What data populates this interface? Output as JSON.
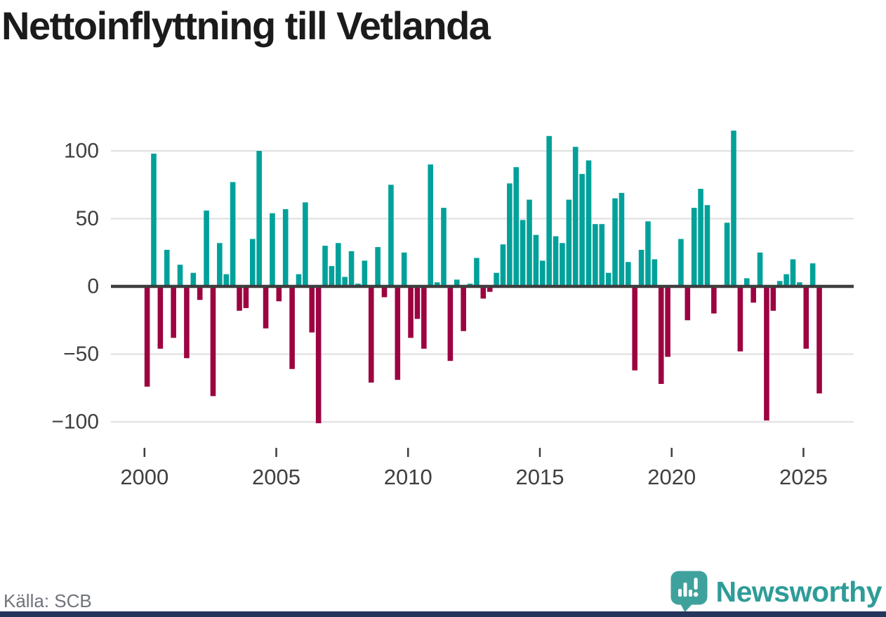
{
  "page": {
    "title": "Nettoinflyttning till Vetlanda",
    "source": "Källa: SCB",
    "brand": "Newsworthy"
  },
  "chart_data": {
    "type": "bar",
    "title": "Nettoinflyttning till Vetlanda",
    "frequency": "quarterly",
    "start_period": "2000-Q1",
    "end_period": "2025-Q3",
    "values": [
      -74,
      98,
      -46,
      27,
      -38,
      16,
      -53,
      10,
      -10,
      56,
      -81,
      32,
      9,
      77,
      -18,
      -16,
      35,
      100,
      -31,
      54,
      -11,
      57,
      -61,
      9,
      62,
      -34,
      -101,
      30,
      15,
      32,
      7,
      26,
      2,
      19,
      -71,
      29,
      -8,
      75,
      -69,
      25,
      -38,
      -24,
      -46,
      90,
      3,
      58,
      -55,
      5,
      -33,
      2,
      21,
      -9,
      -4,
      10,
      31,
      76,
      88,
      49,
      64,
      38,
      19,
      111,
      37,
      32,
      64,
      103,
      83,
      93,
      46,
      46,
      10,
      65,
      69,
      18,
      -62,
      27,
      48,
      20,
      -72,
      -52,
      0,
      35,
      -25,
      58,
      72,
      60,
      -20,
      0,
      47,
      115,
      -48,
      6,
      -12,
      25,
      -99,
      -18,
      4,
      9,
      20,
      3,
      -46,
      17,
      -79
    ],
    "x_axis": {
      "tick_years": [
        2000,
        2005,
        2010,
        2015,
        2020,
        2025
      ],
      "tick_labels": [
        "2000",
        "2005",
        "2010",
        "2015",
        "2020",
        "2025"
      ]
    },
    "y_axis": {
      "ticks": [
        {
          "value": 100,
          "label": "100"
        },
        {
          "value": 50,
          "label": "50"
        },
        {
          "value": 0,
          "label": "0"
        },
        {
          "value": -50,
          "label": "−50"
        },
        {
          "value": -100,
          "label": "−100"
        }
      ],
      "range": [
        -110,
        120
      ]
    },
    "colors": {
      "positive": "#00a19a",
      "negative": "#9d0341",
      "gridline": "#e1e1e1",
      "zero_line": "#3e3e3e",
      "axis_text": "#3f3f3f"
    },
    "grid": true,
    "legend": false,
    "source": "SCB"
  }
}
